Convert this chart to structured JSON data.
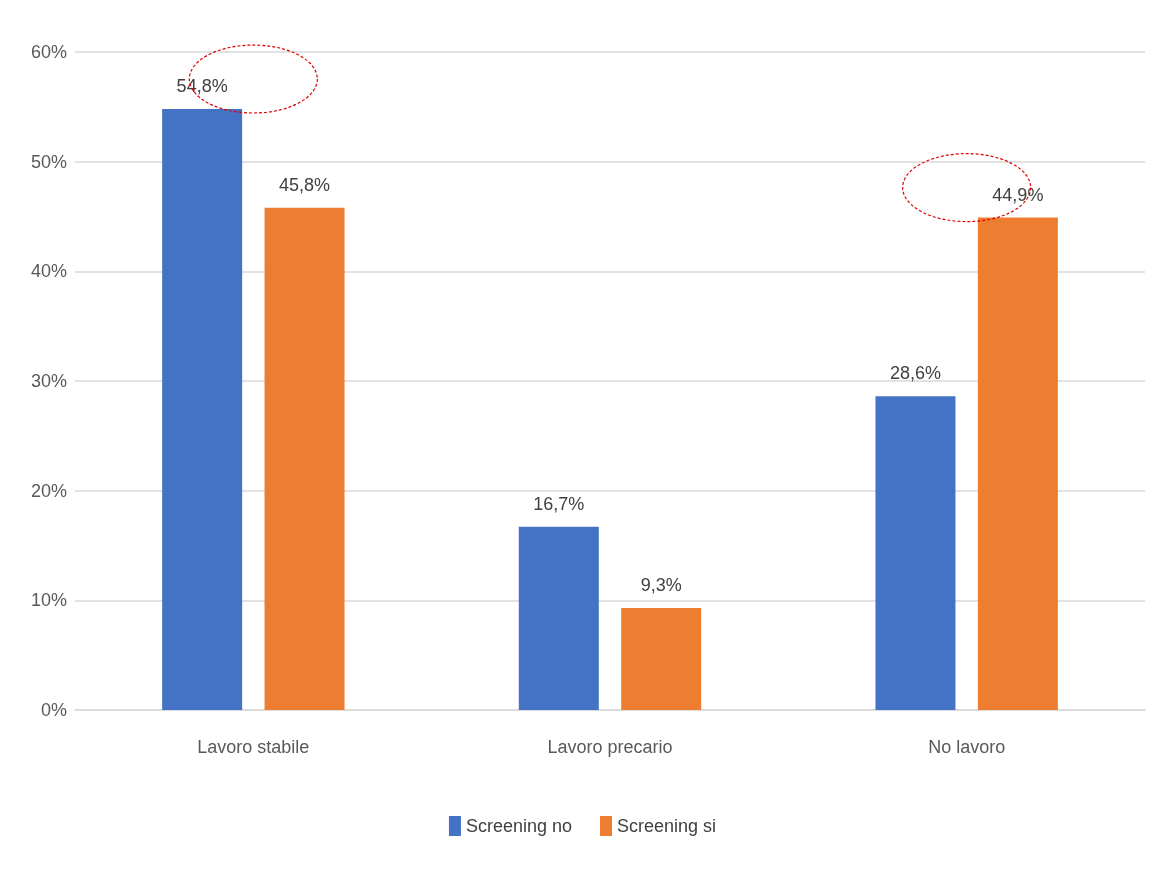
{
  "chart_data": {
    "type": "bar",
    "categories": [
      "Lavoro stabile",
      "Lavoro precario",
      "No lavoro"
    ],
    "series": [
      {
        "name": "Screening no",
        "color": "#4472c4",
        "values": [
          54.8,
          16.7,
          28.6
        ],
        "value_labels": [
          "54,8%",
          "16,7%",
          "28,6%"
        ]
      },
      {
        "name": "Screening si",
        "color": "#ed7d31",
        "values": [
          45.8,
          9.3,
          44.9
        ],
        "value_labels": [
          "45,8%",
          "9,3%",
          "44,9%"
        ]
      }
    ],
    "ylim": [
      0,
      60
    ],
    "yticks": [
      {
        "value": 0,
        "label": "0%"
      },
      {
        "value": 10,
        "label": "10%"
      },
      {
        "value": 20,
        "label": "20%"
      },
      {
        "value": 30,
        "label": "30%"
      },
      {
        "value": 40,
        "label": "40%"
      },
      {
        "value": 50,
        "label": "50%"
      },
      {
        "value": 60,
        "label": "60%"
      }
    ],
    "grid": "y",
    "legend": "bottom"
  }
}
